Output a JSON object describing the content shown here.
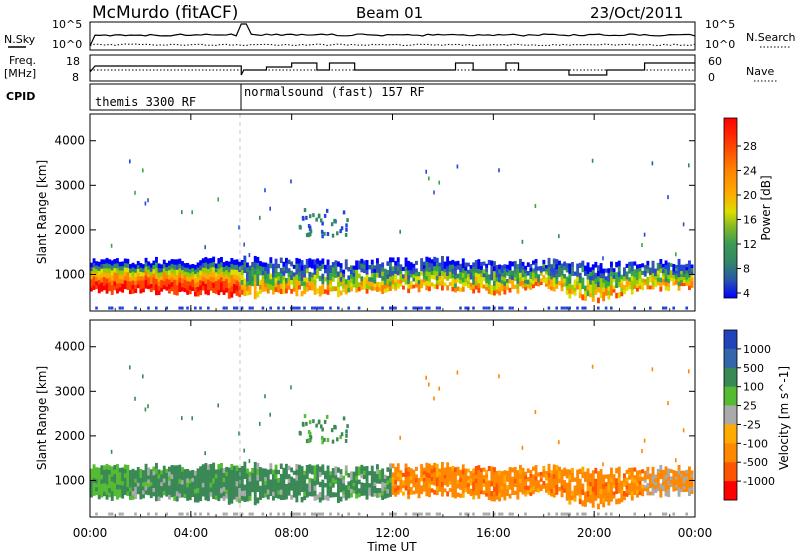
{
  "header": {
    "station": "McMurdo (fitACF)",
    "beam": "Beam 01",
    "date": "23/Oct/2011"
  },
  "side_labels": {
    "nsky": "N.Sky",
    "nsearch": "N.Search",
    "freq_line1": "Freq.",
    "freq_line2": "[MHz]",
    "nave": "Nave",
    "cpid": "CPID"
  },
  "top_axes": {
    "nsky_ticks": [
      "10^5",
      "10^0"
    ],
    "nsearch_ticks": [
      "10^5",
      "10^0"
    ],
    "freq_ticks": [
      "18",
      "8"
    ],
    "nave_ticks": [
      "60",
      "0"
    ]
  },
  "cpid": [
    {
      "label": "themis 3300 RF",
      "start_hr": 0
    },
    {
      "label": "normalsound (fast) 157 RF",
      "start_hr": 5.95
    }
  ],
  "chart_data": [
    {
      "type": "heatmap",
      "panel": "power",
      "ylabel": "Slant Range [km]",
      "yticks": [
        1000,
        2000,
        3000,
        4000
      ],
      "ylim": [
        180,
        4600
      ],
      "xlim_hours": [
        0,
        24
      ],
      "colorbar_label": "Power [dB]",
      "colorbar_ticks": [
        "28",
        "24",
        "20",
        "16",
        "12",
        "8",
        "4"
      ],
      "colorbar_colors": [
        "#ff0000",
        "#ff4400",
        "#ff7f00",
        "#ffaa00",
        "#dddd00",
        "#99cc00",
        "#33aa44",
        "#338866",
        "#3355aa",
        "#2244dd",
        "#0000ff"
      ],
      "echo_band": [
        {
          "hr": 0,
          "lo": 600,
          "hi": 1300
        },
        {
          "hr": 2,
          "lo": 620,
          "hi": 1320
        },
        {
          "hr": 4,
          "lo": 600,
          "hi": 1300
        },
        {
          "hr": 6,
          "lo": 500,
          "hi": 1350
        },
        {
          "hr": 8,
          "lo": 600,
          "hi": 1300
        },
        {
          "hr": 10,
          "lo": 550,
          "hi": 1250
        },
        {
          "hr": 12,
          "lo": 650,
          "hi": 1300
        },
        {
          "hr": 14,
          "lo": 700,
          "hi": 1350
        },
        {
          "hr": 16,
          "lo": 600,
          "hi": 1250
        },
        {
          "hr": 18,
          "lo": 700,
          "hi": 1300
        },
        {
          "hr": 20,
          "lo": 400,
          "hi": 1200
        },
        {
          "hr": 22,
          "lo": 700,
          "hi": 1250
        },
        {
          "hr": 24,
          "lo": 700,
          "hi": 1300
        }
      ]
    },
    {
      "type": "heatmap",
      "panel": "velocity",
      "ylabel": "Slant Range [km]",
      "yticks": [
        1000,
        2000,
        3000,
        4000
      ],
      "ylim": [
        180,
        4600
      ],
      "xlim_hours": [
        0,
        24
      ],
      "xticks": [
        "00:00",
        "04:00",
        "08:00",
        "12:00",
        "16:00",
        "20:00",
        "00:00"
      ],
      "xlabel": "Time UT",
      "colorbar_label": "Velocity [m s^-1]",
      "colorbar_ticks": [
        "1000",
        "500",
        "100",
        "25",
        "-25",
        "-100",
        "-500",
        "-1000"
      ],
      "colorbar_colors": [
        "#2244bb",
        "#3366aa",
        "#3a8855",
        "#55bb33",
        "#aaaaaa",
        "#ffaa00",
        "#ff8800",
        "#ff5500",
        "#ff0000"
      ]
    }
  ]
}
